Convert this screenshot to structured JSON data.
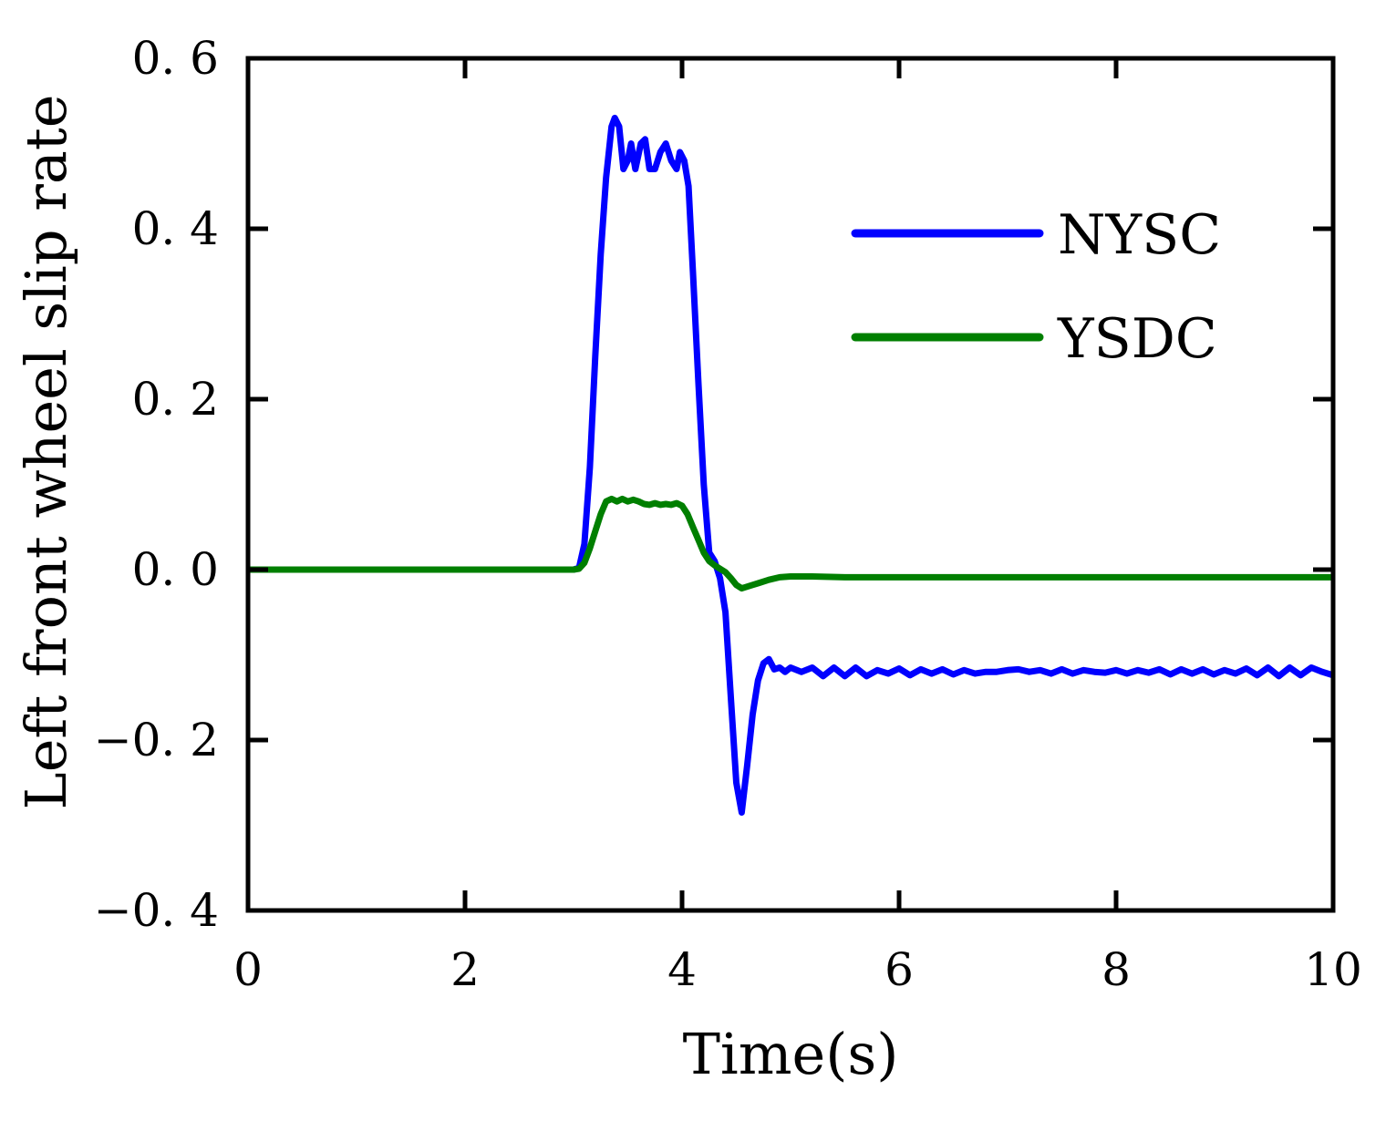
{
  "chart_data": {
    "type": "line",
    "title": "",
    "xlabel": "Time(s)",
    "ylabel": "Left front wheel slip rate",
    "xlim": [
      0,
      10
    ],
    "ylim": [
      -0.4,
      0.6
    ],
    "xticks": [
      0,
      2,
      4,
      6,
      8,
      10
    ],
    "xtick_labels": [
      "0",
      "2",
      "4",
      "6",
      "8",
      "10"
    ],
    "yticks": [
      -0.4,
      -0.2,
      0.0,
      0.2,
      0.4,
      0.6
    ],
    "ytick_labels": [
      "−0. 4",
      "−0. 2",
      "0. 0",
      "0. 2",
      "0. 4",
      "0. 6"
    ],
    "grid": false,
    "legend_position": "top-right",
    "series": [
      {
        "name": "NYSC",
        "color": "#0000ff",
        "points": [
          [
            0,
            0.0
          ],
          [
            0.5,
            0.0
          ],
          [
            1.0,
            0.0
          ],
          [
            1.5,
            0.0
          ],
          [
            2.0,
            0.0
          ],
          [
            2.5,
            0.0
          ],
          [
            3.0,
            0.0
          ],
          [
            3.05,
            0.002
          ],
          [
            3.1,
            0.03
          ],
          [
            3.15,
            0.12
          ],
          [
            3.2,
            0.25
          ],
          [
            3.25,
            0.37
          ],
          [
            3.3,
            0.46
          ],
          [
            3.35,
            0.52
          ],
          [
            3.38,
            0.53
          ],
          [
            3.42,
            0.52
          ],
          [
            3.46,
            0.47
          ],
          [
            3.5,
            0.48
          ],
          [
            3.53,
            0.5
          ],
          [
            3.57,
            0.47
          ],
          [
            3.62,
            0.5
          ],
          [
            3.66,
            0.505
          ],
          [
            3.7,
            0.47
          ],
          [
            3.75,
            0.47
          ],
          [
            3.8,
            0.49
          ],
          [
            3.85,
            0.5
          ],
          [
            3.9,
            0.48
          ],
          [
            3.95,
            0.47
          ],
          [
            3.98,
            0.49
          ],
          [
            4.02,
            0.48
          ],
          [
            4.06,
            0.45
          ],
          [
            4.1,
            0.35
          ],
          [
            4.15,
            0.22
          ],
          [
            4.2,
            0.1
          ],
          [
            4.25,
            0.02
          ],
          [
            4.3,
            0.01
          ],
          [
            4.35,
            -0.01
          ],
          [
            4.4,
            -0.05
          ],
          [
            4.45,
            -0.15
          ],
          [
            4.5,
            -0.25
          ],
          [
            4.55,
            -0.285
          ],
          [
            4.6,
            -0.23
          ],
          [
            4.65,
            -0.17
          ],
          [
            4.7,
            -0.13
          ],
          [
            4.75,
            -0.11
          ],
          [
            4.8,
            -0.105
          ],
          [
            4.85,
            -0.117
          ],
          [
            4.9,
            -0.115
          ],
          [
            4.95,
            -0.12
          ],
          [
            5.0,
            -0.115
          ],
          [
            5.1,
            -0.12
          ],
          [
            5.2,
            -0.115
          ],
          [
            5.3,
            -0.125
          ],
          [
            5.4,
            -0.115
          ],
          [
            5.5,
            -0.125
          ],
          [
            5.6,
            -0.115
          ],
          [
            5.7,
            -0.125
          ],
          [
            5.8,
            -0.118
          ],
          [
            5.9,
            -0.122
          ],
          [
            6.0,
            -0.116
          ],
          [
            6.1,
            -0.124
          ],
          [
            6.2,
            -0.117
          ],
          [
            6.3,
            -0.122
          ],
          [
            6.4,
            -0.117
          ],
          [
            6.5,
            -0.123
          ],
          [
            6.6,
            -0.118
          ],
          [
            6.7,
            -0.122
          ],
          [
            6.8,
            -0.12
          ],
          [
            6.9,
            -0.12
          ],
          [
            7.0,
            -0.118
          ],
          [
            7.1,
            -0.117
          ],
          [
            7.2,
            -0.12
          ],
          [
            7.3,
            -0.118
          ],
          [
            7.4,
            -0.122
          ],
          [
            7.5,
            -0.117
          ],
          [
            7.6,
            -0.122
          ],
          [
            7.7,
            -0.118
          ],
          [
            7.8,
            -0.12
          ],
          [
            7.9,
            -0.121
          ],
          [
            8.0,
            -0.118
          ],
          [
            8.1,
            -0.122
          ],
          [
            8.2,
            -0.118
          ],
          [
            8.3,
            -0.121
          ],
          [
            8.4,
            -0.117
          ],
          [
            8.5,
            -0.123
          ],
          [
            8.6,
            -0.117
          ],
          [
            8.7,
            -0.122
          ],
          [
            8.8,
            -0.117
          ],
          [
            8.9,
            -0.123
          ],
          [
            9.0,
            -0.118
          ],
          [
            9.1,
            -0.122
          ],
          [
            9.2,
            -0.116
          ],
          [
            9.3,
            -0.124
          ],
          [
            9.4,
            -0.115
          ],
          [
            9.5,
            -0.125
          ],
          [
            9.6,
            -0.115
          ],
          [
            9.7,
            -0.124
          ],
          [
            9.8,
            -0.115
          ],
          [
            9.9,
            -0.12
          ],
          [
            10.0,
            -0.124
          ]
        ]
      },
      {
        "name": "YSDC",
        "color": "#007f00",
        "points": [
          [
            0,
            0.0
          ],
          [
            0.5,
            0.0
          ],
          [
            1.0,
            0.0
          ],
          [
            1.5,
            0.0
          ],
          [
            2.0,
            0.0
          ],
          [
            2.5,
            0.0
          ],
          [
            3.0,
            0.0
          ],
          [
            3.05,
            0.001
          ],
          [
            3.1,
            0.008
          ],
          [
            3.15,
            0.025
          ],
          [
            3.2,
            0.045
          ],
          [
            3.25,
            0.065
          ],
          [
            3.3,
            0.08
          ],
          [
            3.35,
            0.083
          ],
          [
            3.4,
            0.08
          ],
          [
            3.45,
            0.083
          ],
          [
            3.5,
            0.08
          ],
          [
            3.55,
            0.082
          ],
          [
            3.6,
            0.08
          ],
          [
            3.65,
            0.077
          ],
          [
            3.7,
            0.076
          ],
          [
            3.75,
            0.078
          ],
          [
            3.8,
            0.076
          ],
          [
            3.85,
            0.077
          ],
          [
            3.9,
            0.076
          ],
          [
            3.95,
            0.078
          ],
          [
            4.0,
            0.075
          ],
          [
            4.05,
            0.065
          ],
          [
            4.1,
            0.05
          ],
          [
            4.15,
            0.035
          ],
          [
            4.2,
            0.02
          ],
          [
            4.25,
            0.01
          ],
          [
            4.3,
            0.005
          ],
          [
            4.35,
            0.001
          ],
          [
            4.4,
            -0.003
          ],
          [
            4.45,
            -0.01
          ],
          [
            4.5,
            -0.018
          ],
          [
            4.55,
            -0.022
          ],
          [
            4.6,
            -0.02
          ],
          [
            4.65,
            -0.018
          ],
          [
            4.7,
            -0.016
          ],
          [
            4.8,
            -0.012
          ],
          [
            4.9,
            -0.009
          ],
          [
            5.0,
            -0.008
          ],
          [
            5.2,
            -0.008
          ],
          [
            5.5,
            -0.009
          ],
          [
            6.0,
            -0.009
          ],
          [
            7.0,
            -0.009
          ],
          [
            8.0,
            -0.009
          ],
          [
            9.0,
            -0.009
          ],
          [
            10.0,
            -0.009
          ]
        ]
      }
    ]
  }
}
